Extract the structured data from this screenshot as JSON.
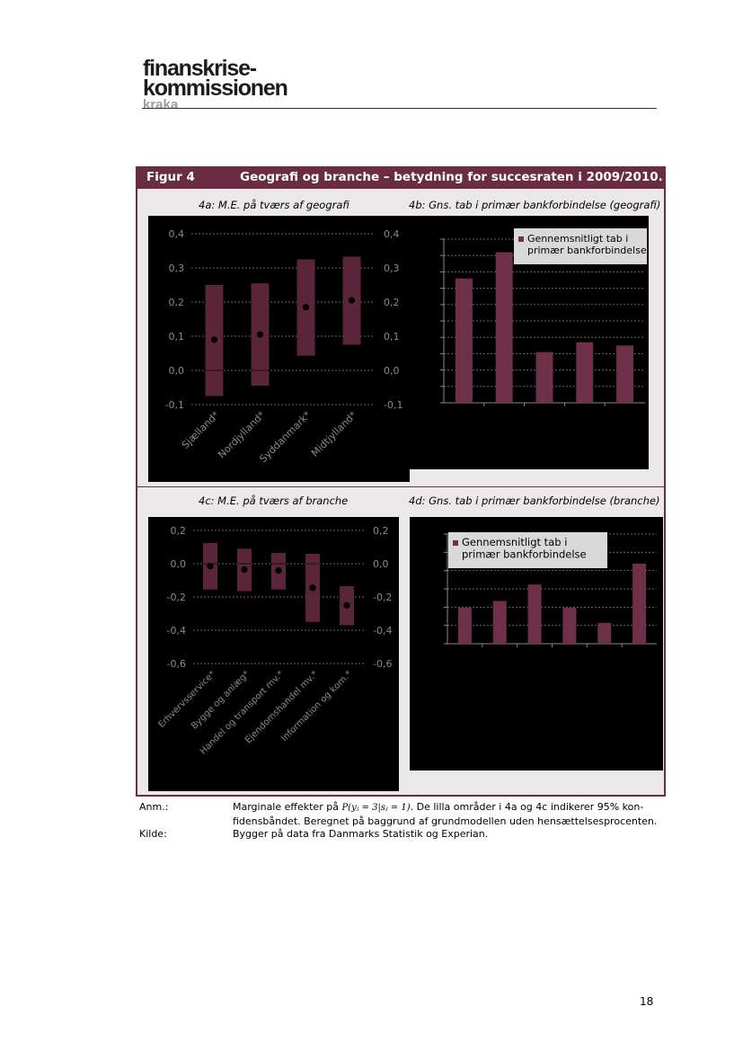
{
  "logo": {
    "line1": "finanskrise-",
    "line2": "kommissionen",
    "line3": "kraka"
  },
  "figure": {
    "number": "Figur 4",
    "title": "Geografi og branche – betydning for succesraten i 2009/2010."
  },
  "chart_data": [
    {
      "id": "4a",
      "type": "scatter",
      "title": "4a: M.E. på tværs af geografi",
      "categories": [
        "Sjælland*",
        "Nordjylland*",
        "Syddanmark*",
        "Midtjylland*"
      ],
      "values": [
        0.09,
        0.105,
        0.185,
        0.205
      ],
      "ci_low": [
        -0.075,
        -0.045,
        0.043,
        0.075
      ],
      "ci_high": [
        0.25,
        0.255,
        0.325,
        0.333
      ],
      "ylim": [
        -0.1,
        0.4
      ],
      "yticks": [
        "-0,1",
        "0,0",
        "0,1",
        "0,2",
        "0,3",
        "0,4"
      ],
      "grid": true
    },
    {
      "id": "4b",
      "type": "bar",
      "title": "4b: Gns. tab i primær bankforbindelse (geografi)",
      "legend": "Gennemsnitligt tab i primær bankforbindelse",
      "legend_position": "top-right",
      "categories": [
        "",
        "",
        "",
        "",
        ""
      ],
      "values": [
        0.76,
        0.92,
        0.31,
        0.37,
        0.35
      ],
      "ylim": [
        0,
        1
      ],
      "grid": true
    },
    {
      "id": "4c",
      "type": "scatter",
      "title": "4c: M.E. på tværs af branche",
      "categories": [
        "Erhvervsservice*",
        "Bygge og anlæg*",
        "Handel og transport mv.*",
        "Ejendomshandel mv.*",
        "Information og kom.*"
      ],
      "values": [
        -0.015,
        -0.035,
        -0.04,
        -0.145,
        -0.25
      ],
      "ci_low": [
        -0.155,
        -0.165,
        -0.155,
        -0.35,
        -0.37
      ],
      "ci_high": [
        0.125,
        0.09,
        0.065,
        0.06,
        -0.135
      ],
      "ylim": [
        -0.6,
        0.2
      ],
      "yticks": [
        "-0,6",
        "-0,4",
        "-0,2",
        "0,0",
        "0,2"
      ],
      "grid": true
    },
    {
      "id": "4d",
      "type": "bar",
      "title": "4d: Gns. tab i primær bankforbindelse (branche)",
      "legend": "Gennemsnitligt tab i primær bankforbindelse",
      "legend_position": "top-left",
      "categories": [
        "",
        "",
        "",
        "",
        "",
        ""
      ],
      "values": [
        0.33,
        0.39,
        0.54,
        0.33,
        0.19,
        0.73
      ],
      "ylim": [
        0,
        1
      ],
      "grid": true
    }
  ],
  "notes": {
    "anm_label": "Anm.:",
    "anm_text_pre": "Marginale effekter på ",
    "anm_formula": "P(yⱼ = 3|sⱼ = 1)",
    "anm_text_post": ". De lilla områder i 4a og 4c indikerer 95% kon-",
    "anm_text_line2": "fidensbåndet. Beregnet på baggrund af grundmodellen uden hensættelsesprocenten.",
    "kilde_label": "Kilde:",
    "kilde_text": "Bygger på data fra Danmarks Statistik og Experian."
  },
  "page_number": "18",
  "colors": {
    "bar": "#6e3048",
    "band": "#5a2539",
    "frame": "#6a2c43",
    "grid": "#666666",
    "text": "#8a8a8a"
  }
}
